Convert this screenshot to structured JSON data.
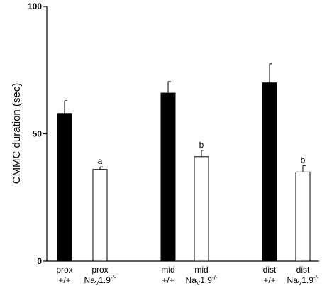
{
  "chart_data": {
    "type": "bar",
    "title": "",
    "ylabel": "CMMC duration (sec)",
    "xlabel": "",
    "ylim": [
      0,
      100
    ],
    "yticks": [
      0,
      50,
      100
    ],
    "grid": false,
    "groups": [
      {
        "bars": [
          {
            "line1": "prox",
            "line2": "+/+",
            "subscript": "",
            "superscript": "",
            "value": 58,
            "error": 5,
            "fill": "#000000",
            "sig": ""
          },
          {
            "line1": "prox",
            "line2": "Na",
            "subscript": "V",
            "line2_rest": "1.9",
            "superscript": "-/-",
            "value": 36,
            "error": 1,
            "fill": "#ffffff",
            "sig": "a"
          }
        ]
      },
      {
        "bars": [
          {
            "line1": "mid",
            "line2": "+/+",
            "subscript": "",
            "superscript": "",
            "value": 66,
            "error": 4.5,
            "fill": "#000000",
            "sig": ""
          },
          {
            "line1": "mid",
            "line2": "Na",
            "subscript": "V",
            "line2_rest": "1.9",
            "superscript": "-/-",
            "value": 41,
            "error": 2.5,
            "fill": "#ffffff",
            "sig": "b"
          }
        ]
      },
      {
        "bars": [
          {
            "line1": "dist",
            "line2": "+/+",
            "subscript": "",
            "superscript": "",
            "value": 70,
            "error": 7.5,
            "fill": "#000000",
            "sig": ""
          },
          {
            "line1": "dist",
            "line2": "Na",
            "subscript": "V",
            "line2_rest": "1.9",
            "superscript": "-/-",
            "value": 35,
            "error": 2.5,
            "fill": "#ffffff",
            "sig": "b"
          }
        ]
      }
    ]
  }
}
